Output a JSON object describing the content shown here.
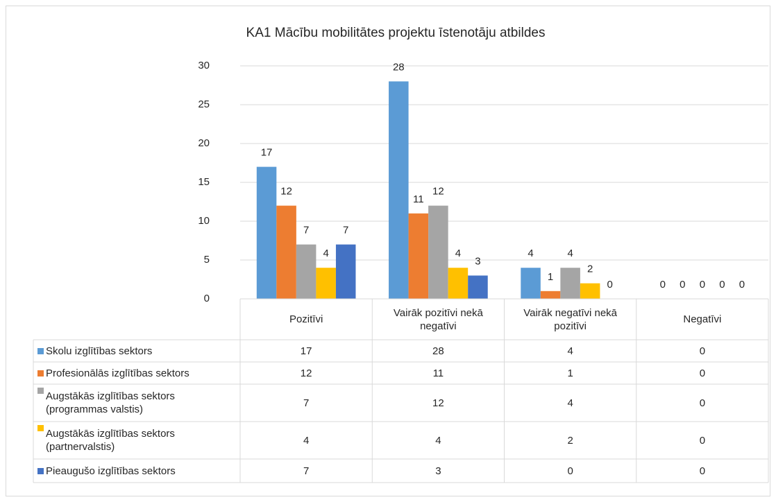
{
  "chart_data": {
    "type": "bar",
    "title": "KA1 Mācību mobilitātes projektu īstenotāju atbildes",
    "categories": [
      "Pozitīvi",
      "Vairāk pozitīvi nekā negatīvi",
      "Vairāk negatīvi nekā pozitīvi",
      "Negatīvi"
    ],
    "series": [
      {
        "name": "Skolu izglītības sektors",
        "color": "#5b9bd5",
        "values": [
          17,
          28,
          4,
          0
        ]
      },
      {
        "name": "Profesionālās izglītības sektors",
        "color": "#ed7d31",
        "values": [
          12,
          11,
          1,
          0
        ]
      },
      {
        "name": "Augstākās izglītības sektors (programmas valstis)",
        "color": "#a5a5a5",
        "values": [
          7,
          12,
          4,
          0
        ]
      },
      {
        "name": "Augstākās izglītības sektors (partnervalstis)",
        "color": "#ffc000",
        "values": [
          4,
          4,
          2,
          0
        ]
      },
      {
        "name": "Pieaugušo izglītības sektors",
        "color": "#4472c4",
        "values": [
          7,
          3,
          0,
          0
        ]
      }
    ],
    "ylim": [
      0,
      30
    ],
    "yticks": [
      0,
      5,
      10,
      15,
      20,
      25,
      30
    ],
    "grid": true
  }
}
